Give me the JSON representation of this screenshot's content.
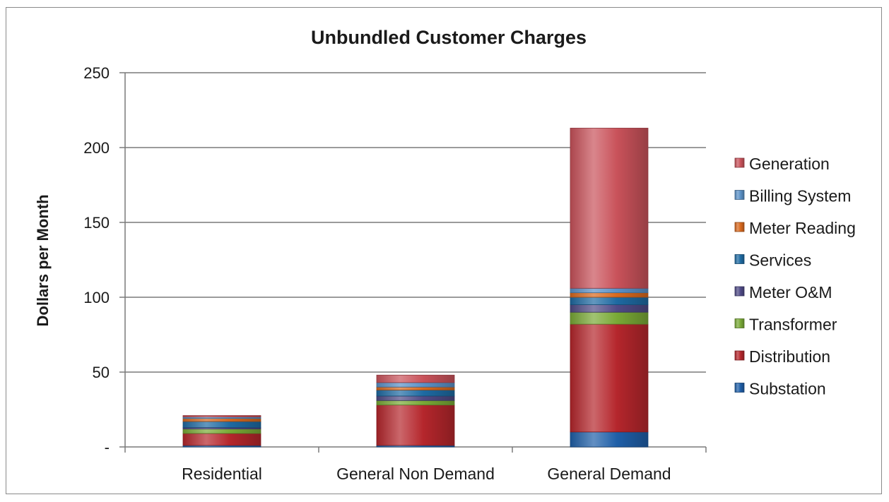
{
  "chart_data": {
    "type": "bar",
    "stacked": true,
    "title": "Unbundled Customer Charges",
    "xlabel": "",
    "ylabel": "Dollars per Month",
    "ylim": [
      0,
      250
    ],
    "y_ticks": [
      0,
      50,
      100,
      150,
      200,
      250
    ],
    "y_tick_labels": [
      "-",
      "50",
      "100",
      "150",
      "200",
      "250"
    ],
    "grid": true,
    "legend_position": "right",
    "categories": [
      "Residential",
      "General Non Demand",
      "General Demand"
    ],
    "series": [
      {
        "name": "Substation",
        "color": "#1f5fa8",
        "values": [
          1,
          1,
          10
        ]
      },
      {
        "name": "Distribution",
        "color": "#b5262c",
        "values": [
          8,
          27,
          72
        ]
      },
      {
        "name": "Transformer",
        "color": "#79a936",
        "values": [
          3,
          3,
          8
        ]
      },
      {
        "name": "Meter O&M",
        "color": "#4f4a86",
        "values": [
          1,
          3,
          5
        ]
      },
      {
        "name": "Services",
        "color": "#1e6aa2",
        "values": [
          4,
          4,
          5
        ]
      },
      {
        "name": "Meter Reading",
        "color": "#d9691e",
        "values": [
          2,
          2,
          3
        ]
      },
      {
        "name": "Billing System",
        "color": "#5b91c7",
        "values": [
          1,
          3,
          3
        ]
      },
      {
        "name": "Generation",
        "color": "#c9525a",
        "values": [
          1,
          5,
          107
        ]
      }
    ]
  }
}
